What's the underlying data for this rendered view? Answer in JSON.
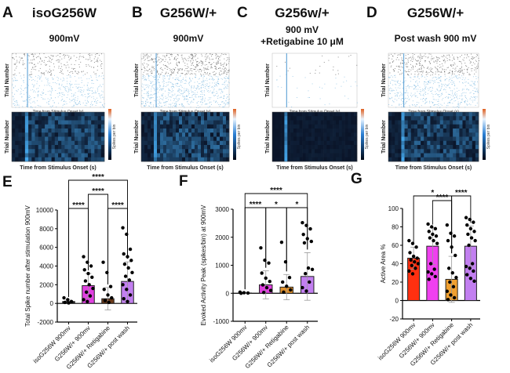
{
  "panels": [
    {
      "letter": "A",
      "title": "isoG256W",
      "subtitle": "900mV",
      "subtitle2": "",
      "density": 1.0,
      "heat": 0.55
    },
    {
      "letter": "B",
      "title": "G256W/+",
      "subtitle": "900mV",
      "subtitle2": "",
      "density": 1.6,
      "heat": 0.6
    },
    {
      "letter": "C",
      "title": "G256w/+",
      "subtitle": "900 mV",
      "subtitle2": "+Retigabine 10 μM",
      "density": 0.08,
      "heat": 0.08
    },
    {
      "letter": "D",
      "title": "G256W/+",
      "subtitle": "Post wash 900 mV",
      "subtitle2": "",
      "density": 1.3,
      "heat": 0.55
    }
  ],
  "raster_labels": {
    "ylabel": "Trial Number",
    "xlabel_small": "Time from Stimulus Onset (s)",
    "xlabel": "Time from Stimulus Onset (s)",
    "colorbar_label": "Spikes per bin"
  },
  "colors": {
    "heat_low": "#000814",
    "heat_mid": "#2a7fd4",
    "heat_high": "#e8f4ff",
    "colorbar_top": "#e06020"
  },
  "chart_data": [
    {
      "letter": "E",
      "type": "bar",
      "ylabel": "Total Spike number after stimulation 900mV",
      "categories": [
        "isoG256W 900mv",
        "G256W/+ 900mv",
        "G256W/+ Retigabine",
        "G256W/+ post wash"
      ],
      "values": [
        200,
        1900,
        500,
        2350
      ],
      "errors": [
        150,
        1300,
        1200,
        2100
      ],
      "colors": [
        "#222222",
        "#e040e0",
        "#6b3a1a",
        "#c27ff0"
      ],
      "ylim": [
        -2000,
        10000
      ],
      "yticks": [
        -2000,
        0,
        2000,
        4000,
        6000,
        8000,
        10000
      ],
      "points": [
        [
          600,
          400,
          200,
          100,
          50
        ],
        [
          5000,
          4400,
          4000,
          3600,
          3200,
          2800,
          2400,
          2000,
          1600,
          1200,
          800,
          400,
          200
        ],
        [
          4400,
          3300,
          1800,
          1500,
          900,
          600,
          300,
          100
        ],
        [
          8100,
          7400,
          5800,
          5300,
          5000,
          4600,
          4200,
          3800,
          3300,
          2900,
          2500,
          2000,
          1500,
          900,
          500,
          200
        ]
      ],
      "significance": [
        {
          "from": 0,
          "to": 3,
          "label": "****",
          "level": 3
        },
        {
          "from": 1,
          "to": 2,
          "label": "****",
          "level": 2
        },
        {
          "from": 0,
          "to": 1,
          "label": "****",
          "level": 1
        },
        {
          "from": 2,
          "to": 3,
          "label": "****",
          "level": 1
        }
      ]
    },
    {
      "letter": "F",
      "type": "bar",
      "ylabel": "Evoked Activity Peak (spikes/bin) at 900mV",
      "categories": [
        "isoG256W 900mv",
        "G256W/+ 900mv",
        "G256W/+ Retigabine",
        "G256W/+ post wash"
      ],
      "values": [
        10,
        300,
        220,
        600
      ],
      "errors": [
        20,
        500,
        450,
        850
      ],
      "colors": [
        "#222222",
        "#e040e0",
        "#e0902a",
        "#c27ff0"
      ],
      "ylim": [
        -1000,
        3000
      ],
      "yticks": [
        -1000,
        0,
        1000,
        2000,
        3000
      ],
      "points": [
        [
          40,
          20,
          10,
          0
        ],
        [
          1620,
          1180,
          1080,
          720,
          540,
          420,
          300,
          200,
          100,
          30
        ],
        [
          1820,
          1120,
          560,
          400,
          250,
          120,
          40
        ],
        [
          2520,
          2420,
          2300,
          2100,
          1950,
          1850,
          1800,
          900,
          850,
          700,
          400,
          200,
          80
        ]
      ],
      "significance": [
        {
          "from": 0,
          "to": 3,
          "label": "****",
          "level": 2
        },
        {
          "from": 0,
          "to": 1,
          "label": "****",
          "level": 1
        },
        {
          "from": 1,
          "to": 2,
          "label": "*",
          "level": 1
        },
        {
          "from": 2,
          "to": 3,
          "label": "*",
          "level": 1
        }
      ]
    },
    {
      "letter": "G",
      "type": "bar",
      "ylabel": "Active Area %",
      "categories": [
        "isoG256W 900mv",
        "G256W/+ 900mv",
        "G256W/+ Retigabine",
        "G256W/+ post wash"
      ],
      "values": [
        46,
        59,
        23,
        59
      ],
      "errors": [
        12,
        20,
        25,
        22
      ],
      "colors": [
        "#ff3010",
        "#f040f0",
        "#f0a030",
        "#c27ff0"
      ],
      "ylim": [
        -20,
        100
      ],
      "yticks": [
        -20,
        0,
        20,
        40,
        60,
        80,
        100
      ],
      "points": [
        [
          65,
          62,
          58,
          52,
          48,
          46,
          44,
          42,
          40,
          38,
          35,
          32,
          29
        ],
        [
          83,
          80,
          78,
          75,
          72,
          70,
          68,
          65,
          62,
          40,
          34,
          31,
          29,
          26,
          23
        ],
        [
          82,
          73,
          70,
          65,
          58,
          49,
          35,
          30,
          25,
          20,
          15,
          10,
          6,
          3,
          1
        ],
        [
          90,
          88,
          85,
          82,
          78,
          75,
          72,
          68,
          65,
          60,
          40,
          37,
          35,
          32,
          28,
          24,
          21
        ]
      ],
      "significance": [
        {
          "from": 0,
          "to": 2,
          "label": "*",
          "level": 3
        },
        {
          "from": 2,
          "to": 3,
          "label": "****",
          "level": 3
        },
        {
          "from": 1,
          "to": 2,
          "label": "****",
          "level": 2
        }
      ]
    }
  ]
}
